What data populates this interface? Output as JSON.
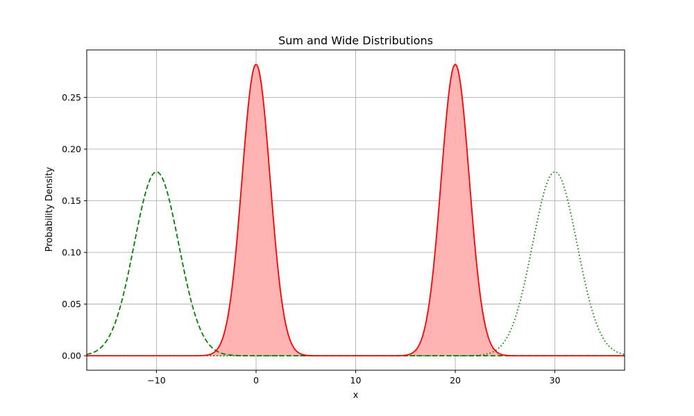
{
  "chart_data": {
    "type": "line",
    "title": "Sum and Wide Distributions",
    "xlabel": "x",
    "ylabel": "Probability Density",
    "xlim": [
      -17,
      37
    ],
    "ylim": [
      -0.014,
      0.296
    ],
    "xticks": [
      -10,
      0,
      10,
      20,
      30
    ],
    "xtick_labels": [
      "−10",
      "0",
      "10",
      "20",
      "30"
    ],
    "yticks": [
      0.0,
      0.05,
      0.1,
      0.15,
      0.2,
      0.25
    ],
    "ytick_labels": [
      "0.00",
      "0.05",
      "0.10",
      "0.15",
      "0.20",
      "0.25"
    ],
    "grid": true,
    "legend": "none",
    "series": [
      {
        "style": "solid",
        "color": "#ff0000",
        "fill": "#ffb3b3",
        "components": [
          {
            "mean": 0,
            "sd": 1.414,
            "weight": 1
          },
          {
            "mean": 20,
            "sd": 1.414,
            "weight": 1
          }
        ],
        "peak": 0.282
      },
      {
        "style": "dashed",
        "color": "#008000",
        "components": [
          {
            "mean": -10,
            "sd": 2.236,
            "weight": 1
          }
        ],
        "peak": 0.178
      },
      {
        "style": "dotted",
        "color": "#008000",
        "components": [
          {
            "mean": 30,
            "sd": 2.236,
            "weight": 1
          }
        ],
        "peak": 0.178
      }
    ]
  }
}
